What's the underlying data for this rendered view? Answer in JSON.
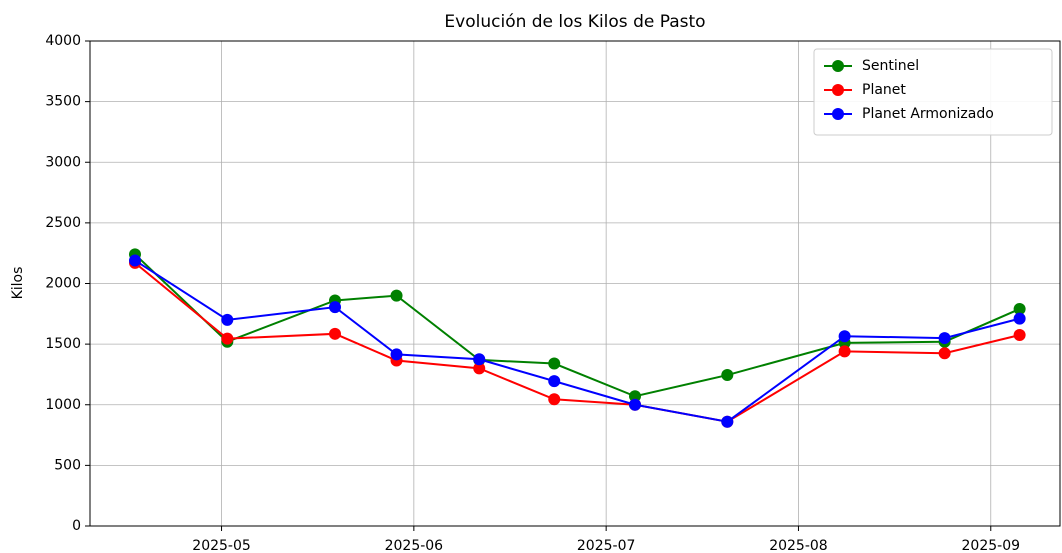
{
  "chart_data": {
    "type": "line",
    "title": "Evolución de los Kilos de Pasto",
    "y_label": "Kilos",
    "x": [
      4.55,
      5.03,
      5.59,
      5.91,
      6.34,
      6.73,
      7.15,
      7.63,
      8.24,
      8.76,
      9.15
    ],
    "xlim": [
      4.316,
      9.36
    ],
    "xticks": [
      {
        "value": 5,
        "label": "2025-05"
      },
      {
        "value": 6,
        "label": "2025-06"
      },
      {
        "value": 7,
        "label": "2025-07"
      },
      {
        "value": 8,
        "label": "2025-08"
      },
      {
        "value": 9,
        "label": "2025-09"
      }
    ],
    "ylim": [
      0,
      4000
    ],
    "yticks": [
      0,
      500,
      1000,
      1500,
      2000,
      2500,
      3000,
      3500,
      4000
    ],
    "grid": true,
    "legend": "upper right",
    "series": [
      {
        "name": "Sentinel",
        "color": "#008000",
        "values": [
          2240,
          1520,
          1860,
          1900,
          1370,
          1340,
          1070,
          1245,
          1510,
          1520,
          1790
        ]
      },
      {
        "name": "Planet",
        "color": "#ff0000",
        "values": [
          2170,
          1545,
          1585,
          1365,
          1300,
          1045,
          1000,
          860,
          1440,
          1425,
          1575
        ]
      },
      {
        "name": "Planet Armonizado",
        "color": "#0000ff",
        "values": [
          2190,
          1700,
          1805,
          1415,
          1375,
          1195,
          1000,
          860,
          1565,
          1550,
          1710
        ]
      }
    ]
  }
}
